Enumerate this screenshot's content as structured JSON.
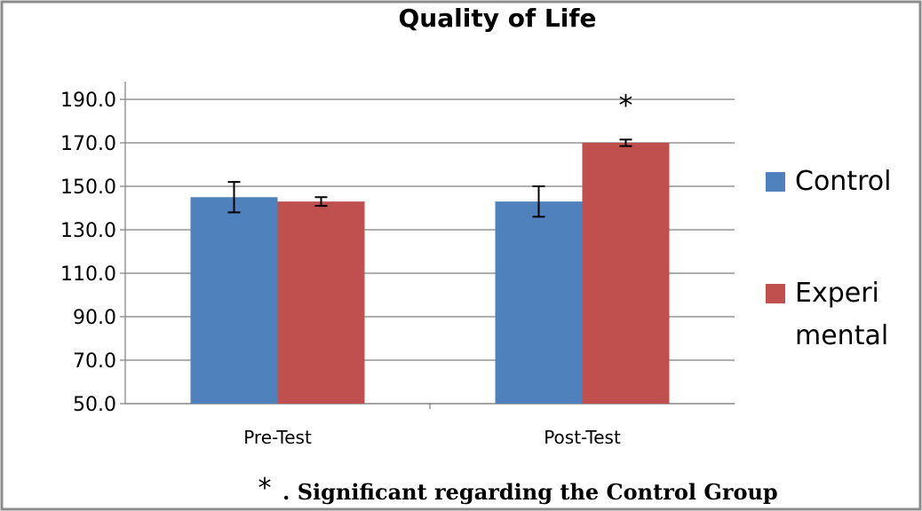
{
  "chart_data": {
    "type": "bar",
    "title": "Quality of Life",
    "categories": [
      "Pre-Test",
      "Post-Test"
    ],
    "series": [
      {
        "name": "Control",
        "values": [
          145.0,
          143.0
        ],
        "errors": [
          7.0,
          7.0
        ],
        "color": "#4F81BD"
      },
      {
        "name": "Experi mental",
        "name_lines": [
          "Experi",
          "mental"
        ],
        "values": [
          143.0,
          170.0
        ],
        "errors": [
          2.0,
          1.5
        ],
        "color": "#C0504D"
      }
    ],
    "ylim": [
      50.0,
      190.0
    ],
    "yticks": [
      "50.0",
      "70.0",
      "90.0",
      "110.0",
      "130.0",
      "150.0",
      "170.0",
      "190.0"
    ],
    "ytick_values": [
      50,
      70,
      90,
      110,
      130,
      150,
      170,
      190
    ],
    "grid": true,
    "legend_position": "right",
    "annotations": [
      {
        "text": "*",
        "category": "Post-Test",
        "series": "Experi mental"
      }
    ],
    "footnote_symbol": "*",
    "footnote_text": ". Significant regarding the Control Group"
  }
}
